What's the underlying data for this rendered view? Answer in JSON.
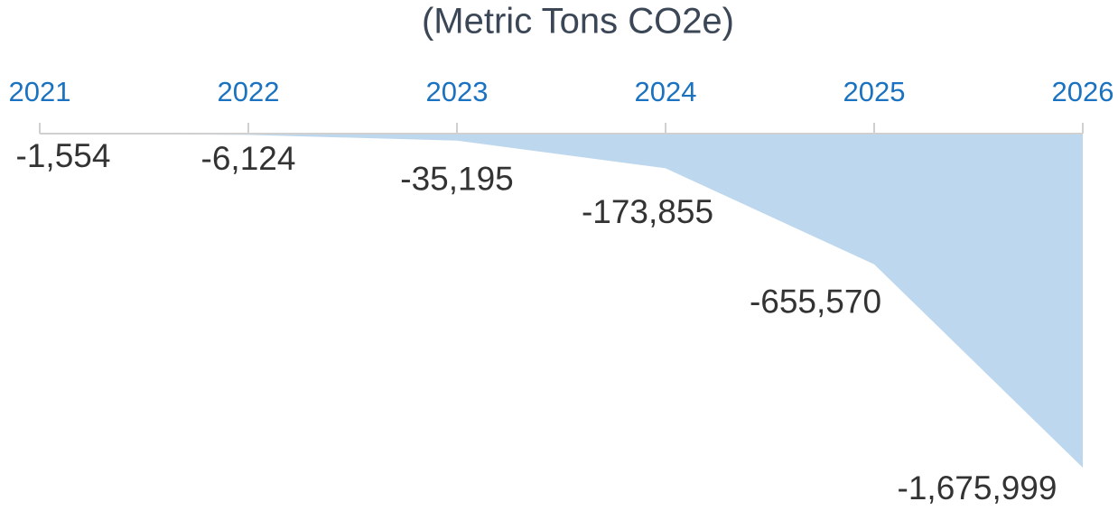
{
  "chart_data": {
    "type": "area",
    "title": "(Metric Tons CO2e)",
    "categories": [
      "2021",
      "2022",
      "2023",
      "2024",
      "2025",
      "2026"
    ],
    "values": [
      -1554,
      -6124,
      -35195,
      -173855,
      -655570,
      -1675999
    ],
    "value_labels": [
      "-1,554",
      "-6,124",
      "-35,195",
      "-173,855",
      "-655,570",
      "-1,675,999"
    ],
    "color": "#bdd7ee"
  }
}
